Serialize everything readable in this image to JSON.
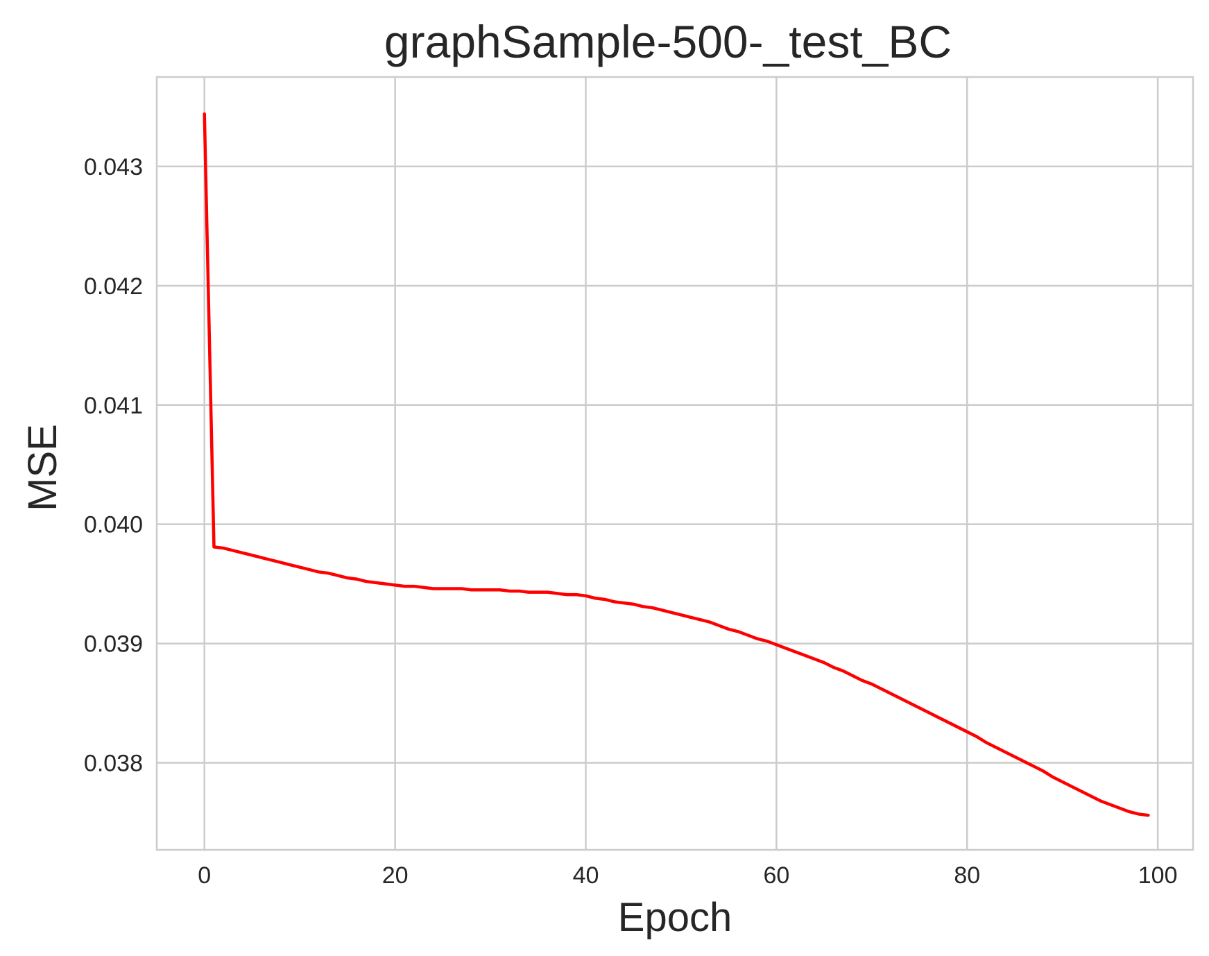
{
  "chart_data": {
    "type": "line",
    "title": "graphSample-500-_test_BC",
    "xlabel": "Epoch",
    "ylabel": "MSE",
    "xlim": [
      -5,
      103.7
    ],
    "ylim": [
      0.03727,
      0.04375
    ],
    "xticks": [
      0,
      20,
      40,
      60,
      80,
      100
    ],
    "xtick_labels": [
      "0",
      "20",
      "40",
      "60",
      "80",
      "100"
    ],
    "yticks": [
      0.038,
      0.039,
      0.04,
      0.041,
      0.042,
      0.043
    ],
    "ytick_labels": [
      "0.038",
      "0.039",
      "0.040",
      "0.041",
      "0.042",
      "0.043"
    ],
    "grid": true,
    "line_color": "#ff0000",
    "grid_color": "#cccccc",
    "frame_color": "#cccccc",
    "x": [
      0,
      1,
      2,
      3,
      4,
      5,
      6,
      7,
      8,
      9,
      10,
      11,
      12,
      13,
      14,
      15,
      16,
      17,
      18,
      19,
      20,
      21,
      22,
      23,
      24,
      25,
      26,
      27,
      28,
      29,
      30,
      31,
      32,
      33,
      34,
      35,
      36,
      37,
      38,
      39,
      40,
      41,
      42,
      43,
      44,
      45,
      46,
      47,
      48,
      49,
      50,
      51,
      52,
      53,
      54,
      55,
      56,
      57,
      58,
      59,
      60,
      61,
      62,
      63,
      64,
      65,
      66,
      67,
      68,
      69,
      70,
      71,
      72,
      73,
      74,
      75,
      76,
      77,
      78,
      79,
      80,
      81,
      82,
      83,
      84,
      85,
      86,
      87,
      88,
      89,
      90,
      91,
      92,
      93,
      94,
      95,
      96,
      97,
      98,
      99
    ],
    "series": [
      {
        "values": [
          0.04344,
          0.03981,
          0.0398,
          0.03978,
          0.03976,
          0.03974,
          0.03972,
          0.0397,
          0.03968,
          0.03966,
          0.03964,
          0.03962,
          0.0396,
          0.03959,
          0.03957,
          0.03955,
          0.03954,
          0.03952,
          0.03951,
          0.0395,
          0.03949,
          0.03948,
          0.03948,
          0.03947,
          0.03946,
          0.03946,
          0.03946,
          0.03946,
          0.03945,
          0.03945,
          0.03945,
          0.03945,
          0.03944,
          0.03944,
          0.03943,
          0.03943,
          0.03943,
          0.03942,
          0.03941,
          0.03941,
          0.0394,
          0.03938,
          0.03937,
          0.03935,
          0.03934,
          0.03933,
          0.03931,
          0.0393,
          0.03928,
          0.03926,
          0.03924,
          0.03922,
          0.0392,
          0.03918,
          0.03915,
          0.03912,
          0.0391,
          0.03907,
          0.03904,
          0.03902,
          0.03899,
          0.03896,
          0.03893,
          0.0389,
          0.03887,
          0.03884,
          0.0388,
          0.03877,
          0.03873,
          0.03869,
          0.03866,
          0.03862,
          0.03858,
          0.03854,
          0.0385,
          0.03846,
          0.03842,
          0.03838,
          0.03834,
          0.0383,
          0.03826,
          0.03822,
          0.03817,
          0.03813,
          0.03809,
          0.03805,
          0.03801,
          0.03797,
          0.03793,
          0.03788,
          0.03784,
          0.0378,
          0.03776,
          0.03772,
          0.03768,
          0.03765,
          0.03762,
          0.03759,
          0.03757,
          0.03756
        ]
      }
    ]
  }
}
